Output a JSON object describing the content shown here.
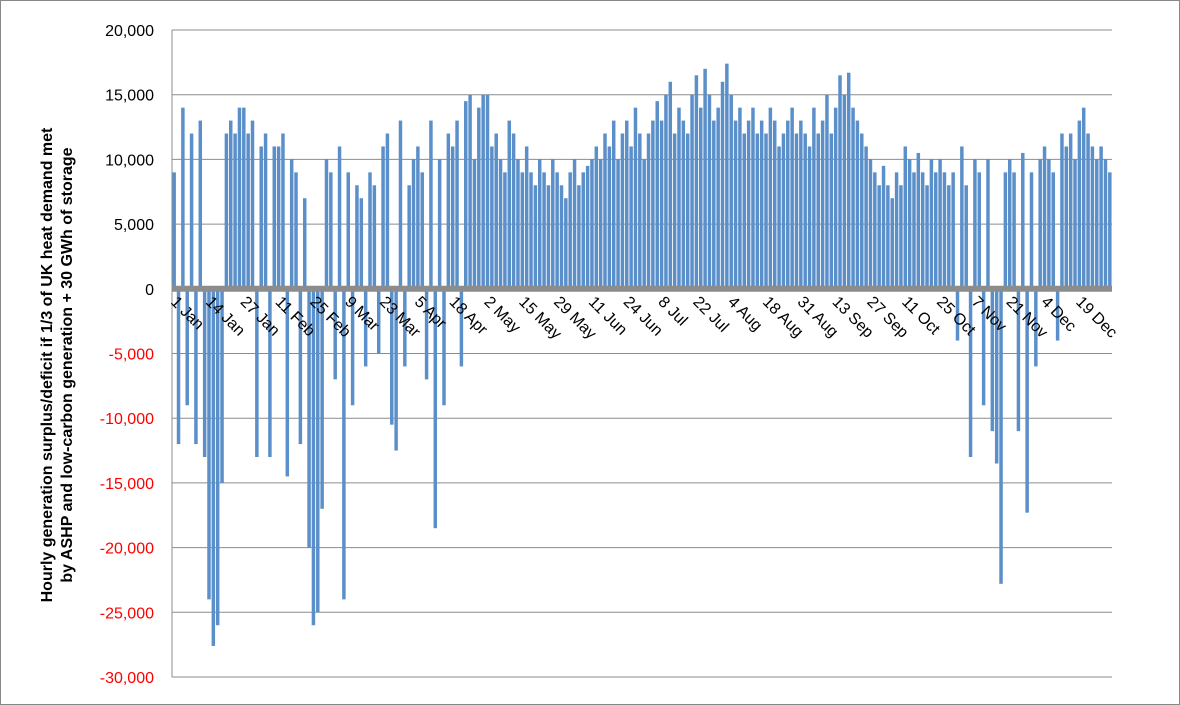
{
  "chart_data": {
    "type": "bar",
    "ylabel": [
      "Hourly generation surplus/deficit if 1/3 of UK heat demand met",
      "by ASHP and low-carbon generation + 30 GWh of storage"
    ],
    "categories": [
      "1 Jan",
      null,
      null,
      null,
      null,
      null,
      null,
      null,
      "14 Jan",
      null,
      null,
      null,
      null,
      null,
      null,
      null,
      "27 Jan",
      null,
      null,
      null,
      null,
      null,
      null,
      null,
      "11 Feb",
      null,
      null,
      null,
      null,
      null,
      null,
      null,
      "25 Feb",
      null,
      null,
      null,
      null,
      null,
      null,
      null,
      "9 Mar",
      null,
      null,
      null,
      null,
      null,
      null,
      null,
      "23 Mar",
      null,
      null,
      null,
      null,
      null,
      null,
      null,
      "5 Apr",
      null,
      null,
      null,
      null,
      null,
      null,
      null,
      "18 Apr",
      null,
      null,
      null,
      null,
      null,
      null,
      null,
      "2 May",
      null,
      null,
      null,
      null,
      null,
      null,
      null,
      "15 May",
      null,
      null,
      null,
      null,
      null,
      null,
      null,
      "29 May",
      null,
      null,
      null,
      null,
      null,
      null,
      null,
      "11 Jun",
      null,
      null,
      null,
      null,
      null,
      null,
      null,
      "24 Jun",
      null,
      null,
      null,
      null,
      null,
      null,
      null,
      "8 Jul",
      null,
      null,
      null,
      null,
      null,
      null,
      null,
      "22 Jul",
      null,
      null,
      null,
      null,
      null,
      null,
      null,
      "4 Aug",
      null,
      null,
      null,
      null,
      null,
      null,
      null,
      "18 Aug",
      null,
      null,
      null,
      null,
      null,
      null,
      null,
      "31 Aug",
      null,
      null,
      null,
      null,
      null,
      null,
      null,
      "13 Sep",
      null,
      null,
      null,
      null,
      null,
      null,
      null,
      "27 Sep",
      null,
      null,
      null,
      null,
      null,
      null,
      null,
      "11 Oct",
      null,
      null,
      null,
      null,
      null,
      null,
      null,
      "25 Oct",
      null,
      null,
      null,
      null,
      null,
      null,
      null,
      "7 Nov",
      null,
      null,
      null,
      null,
      null,
      null,
      null,
      "21 Nov",
      null,
      null,
      null,
      null,
      null,
      null,
      null,
      "4 Dec",
      null,
      null,
      null,
      null,
      null,
      null,
      null,
      "19 Dec",
      null,
      null,
      null,
      null,
      null,
      null,
      null
    ],
    "values": [
      9000,
      -12000,
      14000,
      -9000,
      12000,
      -12000,
      13000,
      -13000,
      -24000,
      -27600,
      -26000,
      -15000,
      12000,
      13000,
      12000,
      14000,
      14000,
      12000,
      13000,
      -13000,
      11000,
      12000,
      -13000,
      11000,
      11000,
      12000,
      -14500,
      10000,
      9000,
      -12000,
      7000,
      -20000,
      -26000,
      -25000,
      -17000,
      10000,
      9000,
      -7000,
      11000,
      -24000,
      9000,
      -9000,
      8000,
      7000,
      -6000,
      9000,
      8000,
      -5000,
      11000,
      12000,
      -10500,
      -12500,
      13000,
      -6000,
      8000,
      10000,
      11000,
      9000,
      -7000,
      13000,
      -18500,
      10000,
      -9000,
      12000,
      11000,
      13000,
      -6000,
      14500,
      15000,
      10000,
      14000,
      15000,
      15000,
      11000,
      12000,
      10000,
      9000,
      13000,
      12000,
      10000,
      9000,
      11000,
      9000,
      8000,
      10000,
      9000,
      8000,
      10000,
      9000,
      8000,
      7000,
      9000,
      10000,
      8000,
      9000,
      9500,
      10000,
      11000,
      10000,
      12000,
      11000,
      13000,
      10000,
      12000,
      13000,
      11000,
      14000,
      12000,
      10000,
      12000,
      13000,
      14500,
      13000,
      15000,
      16000,
      12000,
      14000,
      13000,
      12000,
      15000,
      16500,
      14000,
      17000,
      15000,
      13000,
      14000,
      16000,
      17400,
      15000,
      13000,
      14000,
      12000,
      13000,
      14000,
      12000,
      13000,
      12000,
      14000,
      13000,
      11000,
      12000,
      13000,
      14000,
      12000,
      13000,
      12000,
      11000,
      14000,
      12000,
      13000,
      15000,
      12000,
      14000,
      16500,
      15000,
      16700,
      14000,
      13000,
      12000,
      11000,
      10000,
      9000,
      8000,
      9500,
      8000,
      7000,
      9000,
      8000,
      11000,
      10000,
      9000,
      10500,
      9000,
      8000,
      10000,
      9000,
      10000,
      9000,
      8000,
      9000,
      -4000,
      11000,
      8000,
      -13000,
      10000,
      9000,
      -9000,
      10000,
      -11000,
      -13500,
      -22800,
      9000,
      10000,
      9000,
      -11000,
      10500,
      -17300,
      9000,
      -6000,
      10000,
      11000,
      10000,
      9000,
      -4000,
      12000,
      11000,
      12000,
      10000,
      13000,
      14000,
      12000,
      11000,
      10000,
      11000,
      10000,
      9000
    ],
    "color": "#5b8fc9",
    "ylim": [
      -30000,
      20000
    ],
    "yticks": [
      {
        "value": -30000,
        "label": "-30,000"
      },
      {
        "value": -25000,
        "label": "-25,000"
      },
      {
        "value": -20000,
        "label": "-20,000"
      },
      {
        "value": -15000,
        "label": "-15,000"
      },
      {
        "value": -10000,
        "label": "-10,000"
      },
      {
        "value": -5000,
        "label": "-5,000"
      },
      0,
      {
        "value": 5000,
        "label": "5,000"
      },
      {
        "value": 10000,
        "label": "10,000"
      },
      {
        "value": 15000,
        "label": "15,000"
      },
      {
        "value": 20000,
        "label": "20,000"
      }
    ],
    "negative_tick_color": "#ff0000",
    "grid": true
  }
}
